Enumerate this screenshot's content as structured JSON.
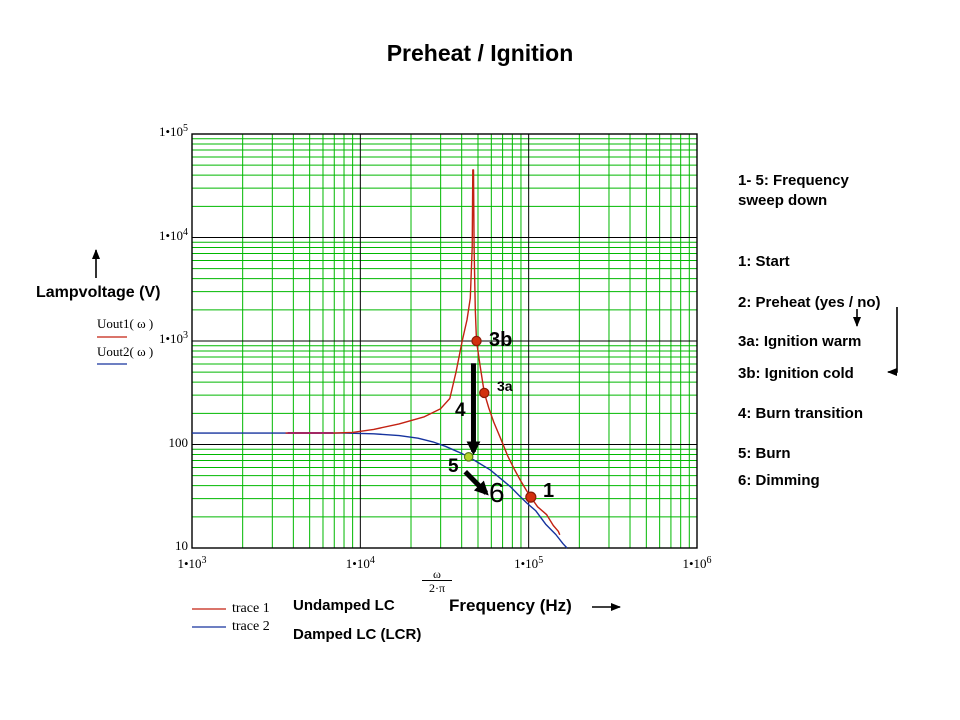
{
  "title": "Preheat / Ignition",
  "y_axis": {
    "label": "Lampvoltage (V)",
    "trace1_expr": "Uout1( ω )",
    "trace2_expr": "Uout2( ω )"
  },
  "x_axis": {
    "frac_num": "ω",
    "frac_den": "2·π",
    "label": "Frequency (Hz)"
  },
  "legend": {
    "trace1": "trace 1",
    "trace2": "trace 2",
    "series1": "Undamped LC",
    "series2": "Damped LC (LCR)"
  },
  "side_notes": {
    "sweep": "1- 5: Frequency\nsweep down",
    "n1": "1:  Start",
    "n2": "2: Preheat (yes / no)",
    "n3a": "3a: Ignition warm",
    "n3b": "3b: Ignition cold",
    "n4": "4: Burn transition",
    "n5": "5: Burn",
    "n6": "6: Dimming"
  },
  "point_labels": {
    "p3b": "3b",
    "p3a": "3a",
    "p4": "4",
    "p5": "5",
    "p6": "6",
    "p1": "1"
  },
  "chart_data": {
    "type": "line",
    "title": "Preheat / Ignition",
    "xlabel": "Frequency (Hz)",
    "ylabel": "Lampvoltage (V)",
    "x_scale": "log",
    "y_scale": "log",
    "xlim": [
      1000,
      1000000
    ],
    "ylim": [
      10,
      100000
    ],
    "grid": true,
    "grid_color": "#00b800",
    "major_color": "#000000",
    "x_ticks": [
      {
        "base": "1•10",
        "sup": "3",
        "value": 1000
      },
      {
        "base": "1•10",
        "sup": "4",
        "value": 10000
      },
      {
        "base": "1•10",
        "sup": "5",
        "value": 100000
      },
      {
        "base": "1•10",
        "sup": "6",
        "value": 1000000
      }
    ],
    "y_ticks": [
      {
        "base": "1•10",
        "sup": "5",
        "value": 100000
      },
      {
        "base": "1•10",
        "sup": "4",
        "value": 10000
      },
      {
        "base": "1•10",
        "sup": "3",
        "value": 1000
      },
      {
        "base": "100",
        "sup": "",
        "value": 100
      },
      {
        "base": "10",
        "sup": "",
        "value": 10
      }
    ],
    "series": [
      {
        "name": "trace 1",
        "desc": "Undamped LC",
        "color": "#c32112",
        "points": [
          [
            3600,
            129
          ],
          [
            6900,
            129
          ],
          [
            9000,
            131
          ],
          [
            12000,
            140
          ],
          [
            17000,
            158
          ],
          [
            24000,
            185
          ],
          [
            30000,
            222
          ],
          [
            34000,
            278
          ],
          [
            37000,
            500
          ],
          [
            40300,
            1000
          ],
          [
            43000,
            1600
          ],
          [
            45000,
            2600
          ],
          [
            46200,
            8000
          ],
          [
            46600,
            45000
          ],
          [
            47000,
            45000
          ],
          [
            47400,
            8000
          ],
          [
            48200,
            2000
          ],
          [
            49000,
            1000
          ],
          [
            51500,
            570
          ],
          [
            54500,
            315
          ],
          [
            58000,
            225
          ],
          [
            62000,
            165
          ],
          [
            68000,
            115
          ],
          [
            75000,
            78
          ],
          [
            82000,
            58
          ],
          [
            90000,
            44
          ],
          [
            97000,
            36
          ],
          [
            103000,
            31
          ],
          [
            113000,
            25
          ],
          [
            128000,
            21
          ],
          [
            140000,
            16.5
          ],
          [
            150000,
            14.5
          ],
          [
            153000,
            13.4
          ]
        ]
      },
      {
        "name": "trace 2",
        "desc": "Damped LC (LCR)",
        "color": "#16339e",
        "points": [
          [
            1000,
            129
          ],
          [
            8000,
            129
          ],
          [
            12000,
            127
          ],
          [
            17000,
            122
          ],
          [
            22000,
            115
          ],
          [
            27000,
            106
          ],
          [
            32000,
            96
          ],
          [
            38000,
            85
          ],
          [
            44000,
            76
          ],
          [
            50000,
            67
          ],
          [
            59000,
            57
          ],
          [
            68000,
            47
          ],
          [
            78000,
            39
          ],
          [
            88000,
            32
          ],
          [
            98000,
            27
          ],
          [
            110000,
            23
          ],
          [
            126000,
            17
          ],
          [
            145000,
            13.5
          ],
          [
            160000,
            11
          ],
          [
            169000,
            10
          ]
        ]
      }
    ],
    "overlap_segment": {
      "color": "#a12862",
      "points": [
        [
          3700,
          129
        ],
        [
          6900,
          129
        ]
      ]
    },
    "markers": [
      {
        "label": "3b",
        "f": 49000,
        "v": 1000,
        "fill": "#d2300e",
        "stroke": "#8a1a06",
        "r": 4.6
      },
      {
        "label": "3a",
        "f": 54500,
        "v": 315,
        "fill": "#d2300e",
        "stroke": "#8a1a06",
        "r": 4.6
      },
      {
        "label": "1",
        "f": 103000,
        "v": 31,
        "fill": "#d2300e",
        "stroke": "#8a1a06",
        "r": 5
      },
      {
        "label": "5",
        "f": 44000,
        "v": 76,
        "fill": "#b5d42a",
        "stroke": "#567d14",
        "r": 4.2
      }
    ],
    "annotation_arrows": [
      {
        "id": "arrow-4",
        "from": [
          47000,
          610
        ],
        "to": [
          47000,
          85
        ],
        "width": 5
      },
      {
        "id": "arrow-6",
        "from": [
          42000,
          54.5
        ],
        "to": [
          56000,
          34
        ],
        "width": 5
      }
    ]
  }
}
